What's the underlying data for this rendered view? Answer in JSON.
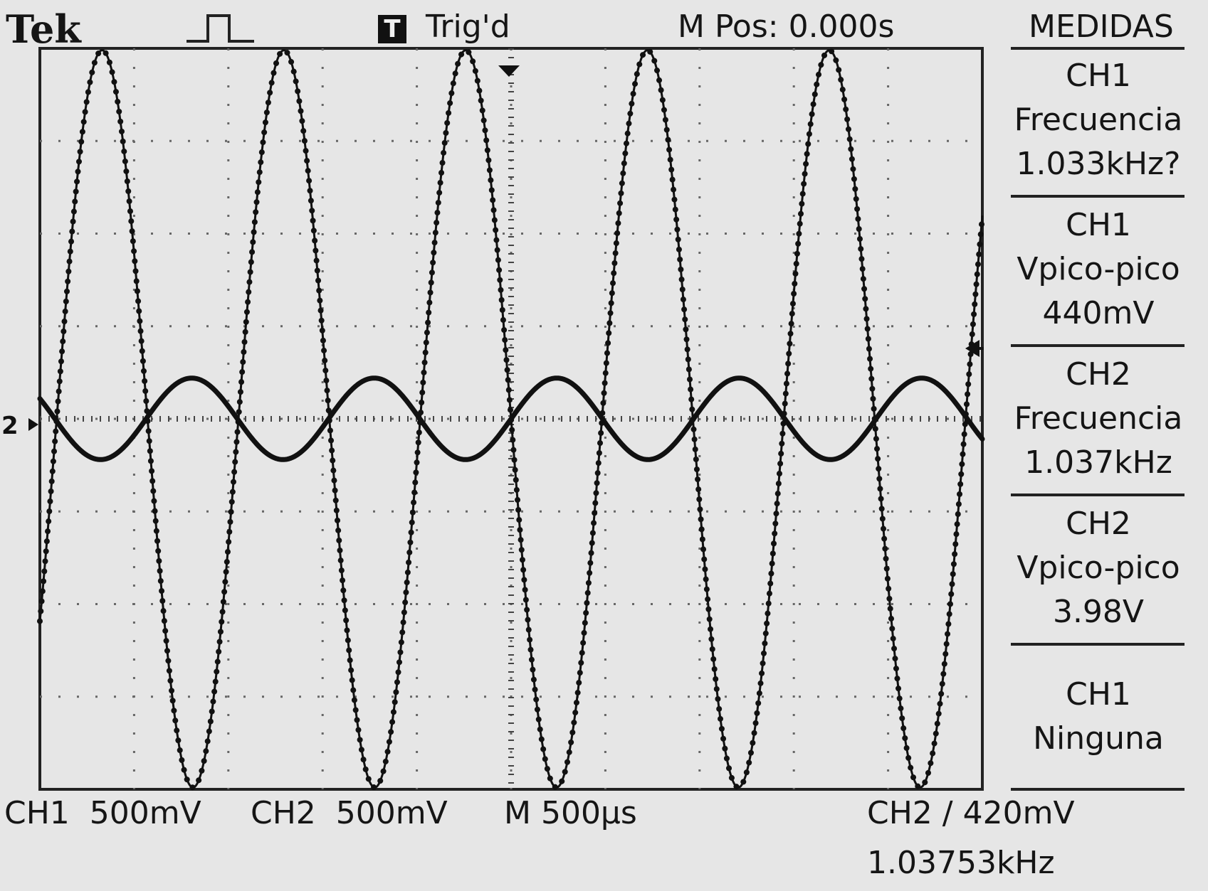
{
  "header": {
    "brand": "Tek",
    "trigger_box": "T",
    "trigger_status": "Trig'd",
    "m_position": "M Pos: 0.000s"
  },
  "sidebar": {
    "title": "MEDIDAS",
    "measurements": [
      {
        "channel": "CH1",
        "type": "Frecuencia",
        "value": "1.033kHz?"
      },
      {
        "channel": "CH1",
        "type": "Vpico-pico",
        "value": "440mV"
      },
      {
        "channel": "CH2",
        "type": "Frecuencia",
        "value": "1.037kHz"
      },
      {
        "channel": "CH2",
        "type": "Vpico-pico",
        "value": "3.98V"
      },
      {
        "channel": "CH1",
        "type": "Ninguna",
        "value": ""
      }
    ]
  },
  "footer": {
    "ch1_scale": "CH1  500mV",
    "ch2_scale": "CH2  500mV",
    "time_scale": "M 500µs",
    "trigger_source": "CH2 ∕ 420mV",
    "trigger_frequency": "1.03753kHz"
  },
  "markers": {
    "ch2_ground": "2"
  },
  "colors": {
    "background": "#e6e6e6",
    "trace": "#111111"
  },
  "chart_data": {
    "type": "line",
    "title": "",
    "xlabel": "",
    "ylabel": "",
    "xlim": [
      -2.5,
      2.5
    ],
    "ylim": [
      -2.0,
      2.0
    ],
    "grid": true,
    "x_unit": "ms",
    "y_unit": "V",
    "series": [
      {
        "name": "CH1",
        "frequency_khz": 1.033,
        "vpp": 0.44,
        "phase_deg": 0,
        "dotted": false
      },
      {
        "name": "CH2",
        "frequency_khz": 1.037,
        "vpp": 3.98,
        "phase_deg": 180,
        "dotted": true
      }
    ]
  }
}
